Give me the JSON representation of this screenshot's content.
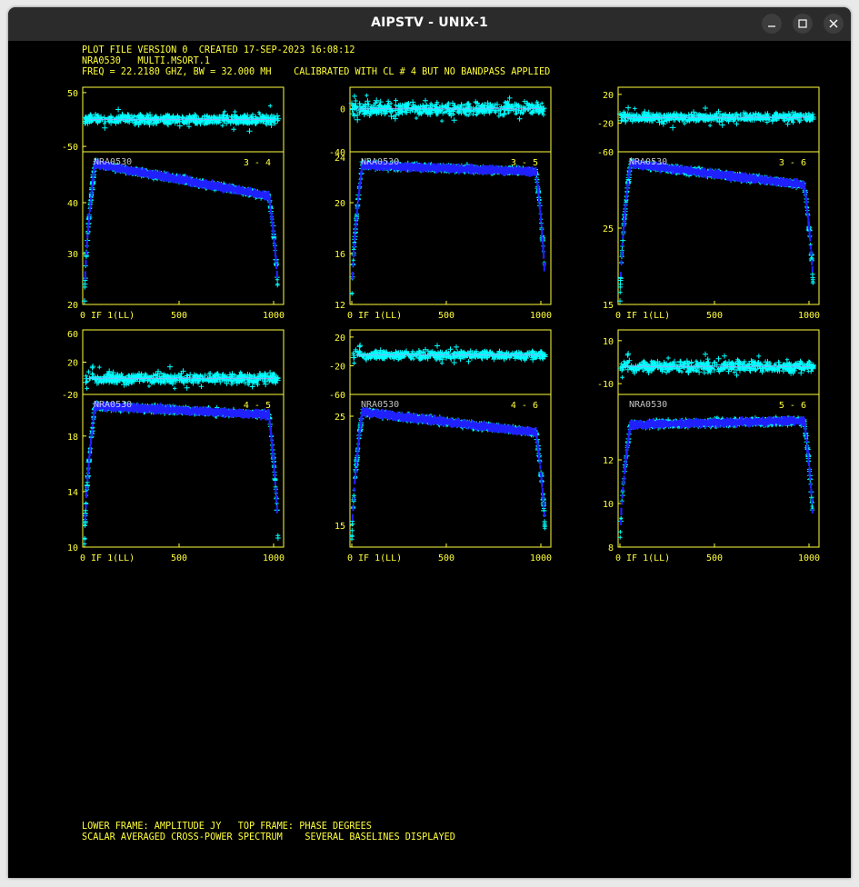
{
  "window": {
    "title": "AIPSTV - UNIX-1",
    "controls": [
      "minimize",
      "maximize",
      "close"
    ]
  },
  "header": {
    "line1": "PLOT FILE VERSION 0  CREATED 17-SEP-2023 16:08:12",
    "line2": "NRA0530   MULTI.MSORT.1",
    "line3": "FREQ = 22.2180 GHZ, BW = 32.000 MH    CALIBRATED WITH CL # 4 BUT NO BANDPASS APPLIED"
  },
  "footer": {
    "line1": "LOWER FRAME: AMPLITUDE JY   TOP FRAME: PHASE DEGREES",
    "line2": "SCALAR AVERAGED CROSS-POWER SPECTRUM    SEVERAL BASELINES DISPLAYED"
  },
  "colors": {
    "axes": "#ffff3c",
    "scatter": "#00ffff",
    "average": "#2020ff",
    "background": "#000000"
  },
  "chart_data": [
    {
      "type": "scatter",
      "baseline": "3 - 4",
      "source": "NRA0530",
      "x_label": "0 IF 1(LL)",
      "x_ticks": [
        "0",
        "500",
        "1000"
      ],
      "xlim": [
        0,
        1024
      ],
      "phase": {
        "ylim": [
          -60,
          60
        ],
        "y_ticks": [
          "50",
          "-50"
        ],
        "center": 0,
        "spread": 14
      },
      "amplitude": {
        "ylim": [
          20,
          50
        ],
        "y_ticks": [
          "40",
          "30",
          "20"
        ],
        "profile": [
          48,
          41
        ],
        "edge": "high"
      }
    },
    {
      "type": "scatter",
      "baseline": "3 - 5",
      "source": "NRA0530",
      "x_label": "0 IF 1(LL)",
      "x_ticks": [
        "0",
        "500",
        "1000"
      ],
      "xlim": [
        0,
        1024
      ],
      "phase": {
        "ylim": [
          -40,
          20
        ],
        "y_ticks": [
          "0",
          "-40"
        ],
        "center": 0,
        "spread": 9
      },
      "amplitude": {
        "ylim": [
          12,
          24
        ],
        "y_ticks": [
          "24",
          "20",
          "16",
          "12"
        ],
        "profile": [
          23,
          22.4
        ],
        "edge": "high"
      }
    },
    {
      "type": "scatter",
      "baseline": "3 - 6",
      "source": "NRA0530",
      "x_label": "0 IF 1(LL)",
      "x_ticks": [
        "0",
        "500",
        "1000"
      ],
      "xlim": [
        0,
        1024
      ],
      "phase": {
        "ylim": [
          -60,
          30
        ],
        "y_ticks": [
          "20",
          "-20",
          "-60"
        ],
        "center": -12,
        "spread": 9
      },
      "amplitude": {
        "ylim": [
          15,
          35
        ],
        "y_ticks": [
          "25",
          "15"
        ],
        "profile": [
          33.6,
          30.5
        ],
        "edge": "high"
      }
    },
    {
      "type": "scatter",
      "baseline": "4 - 5",
      "source": "NRA0530",
      "x_label": "0 IF 1(LL)",
      "x_ticks": [
        "0",
        "500",
        "1000"
      ],
      "xlim": [
        0,
        1024
      ],
      "phase": {
        "ylim": [
          -20,
          60
        ],
        "y_ticks": [
          "60",
          "20",
          "-20"
        ],
        "center": 0,
        "spread": 10
      },
      "amplitude": {
        "ylim": [
          10,
          21
        ],
        "y_ticks": [
          "18",
          "14",
          "10"
        ],
        "profile": [
          20.2,
          19.5
        ],
        "edge": "high"
      }
    },
    {
      "type": "scatter",
      "baseline": "4 - 6",
      "source": "NRA0530",
      "x_label": "0 IF 1(LL)",
      "x_ticks": [
        "0",
        "500",
        "1000"
      ],
      "xlim": [
        0,
        1024
      ],
      "phase": {
        "ylim": [
          -60,
          30
        ],
        "y_ticks": [
          "20",
          "-20",
          "-60"
        ],
        "center": -5,
        "spread": 9
      },
      "amplitude": {
        "ylim": [
          13,
          27
        ],
        "y_ticks": [
          "25",
          "15"
        ],
        "profile": [
          25.5,
          23.4
        ],
        "edge": "high"
      }
    },
    {
      "type": "scatter",
      "baseline": "5 - 6",
      "source": "NRA0530",
      "x_label": "0 IF 1(LL)",
      "x_ticks": [
        "0",
        "500",
        "1000"
      ],
      "xlim": [
        0,
        1024
      ],
      "phase": {
        "ylim": [
          -15,
          15
        ],
        "y_ticks": [
          "10",
          "-10"
        ],
        "center": -2,
        "spread": 4
      },
      "amplitude": {
        "ylim": [
          8,
          15
        ],
        "y_ticks": [
          "12",
          "10",
          "8"
        ],
        "profile": [
          13.6,
          13.8
        ],
        "edge": "high"
      }
    }
  ]
}
